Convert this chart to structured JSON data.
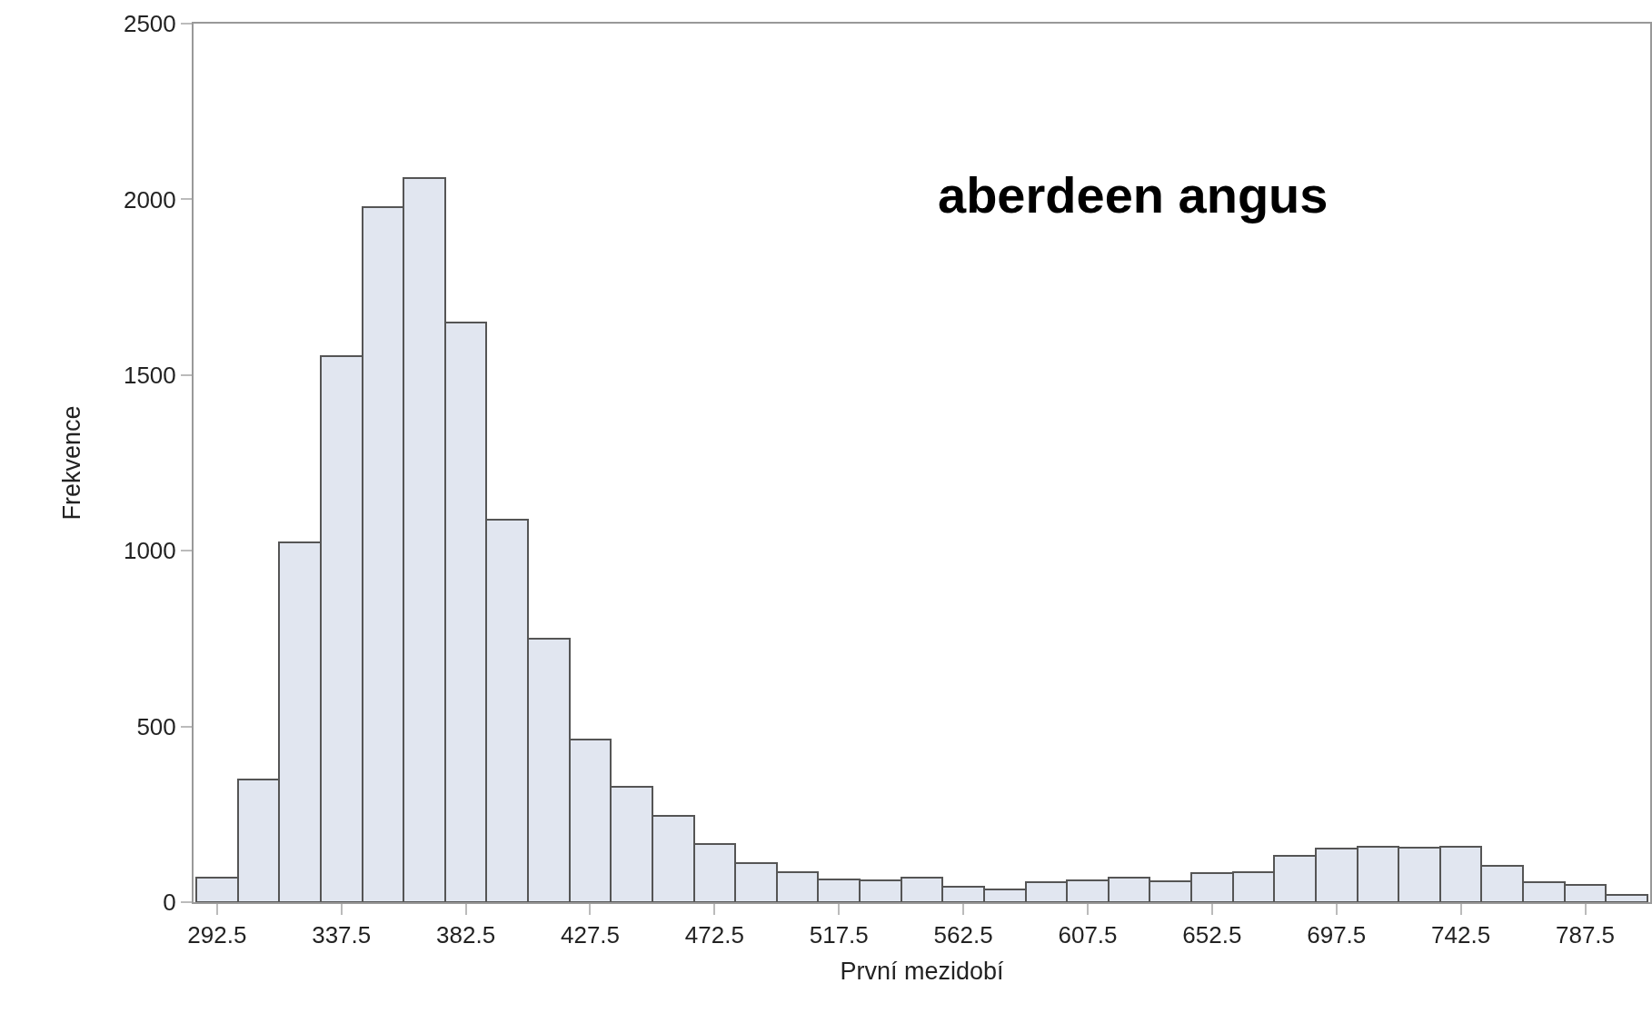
{
  "chart_data": {
    "type": "histogram",
    "annotations": [
      "aberdeen angus"
    ],
    "xlabel": "První mezidobí",
    "ylabel": "Frekvence",
    "bins": [
      285,
      300,
      315,
      330,
      345,
      360,
      375,
      390,
      405,
      420,
      435,
      450,
      465,
      480,
      495,
      510,
      525,
      540,
      555,
      570,
      585,
      600,
      615,
      630,
      645,
      660,
      675,
      690,
      705,
      720,
      735,
      750,
      765,
      780,
      795,
      810
    ],
    "values": [
      70,
      348,
      1024,
      1553,
      1978,
      2060,
      1650,
      1089,
      750,
      463,
      328,
      245,
      165,
      112,
      86,
      65,
      62,
      70,
      44,
      35,
      56,
      62,
      71,
      59,
      83,
      86,
      133,
      153,
      159,
      156,
      159,
      103,
      56,
      50,
      21
    ],
    "color": "#e1e6f0",
    "xlim": [
      284,
      811
    ],
    "xticks": [
      292.5,
      337.5,
      382.5,
      427.5,
      472.5,
      517.5,
      562.5,
      607.5,
      652.5,
      697.5,
      742.5,
      787.5
    ],
    "ylim": [
      0,
      2500
    ],
    "yticks": [
      0,
      500,
      1000,
      1500,
      2000,
      2500
    ],
    "grid": false,
    "legend": false
  }
}
